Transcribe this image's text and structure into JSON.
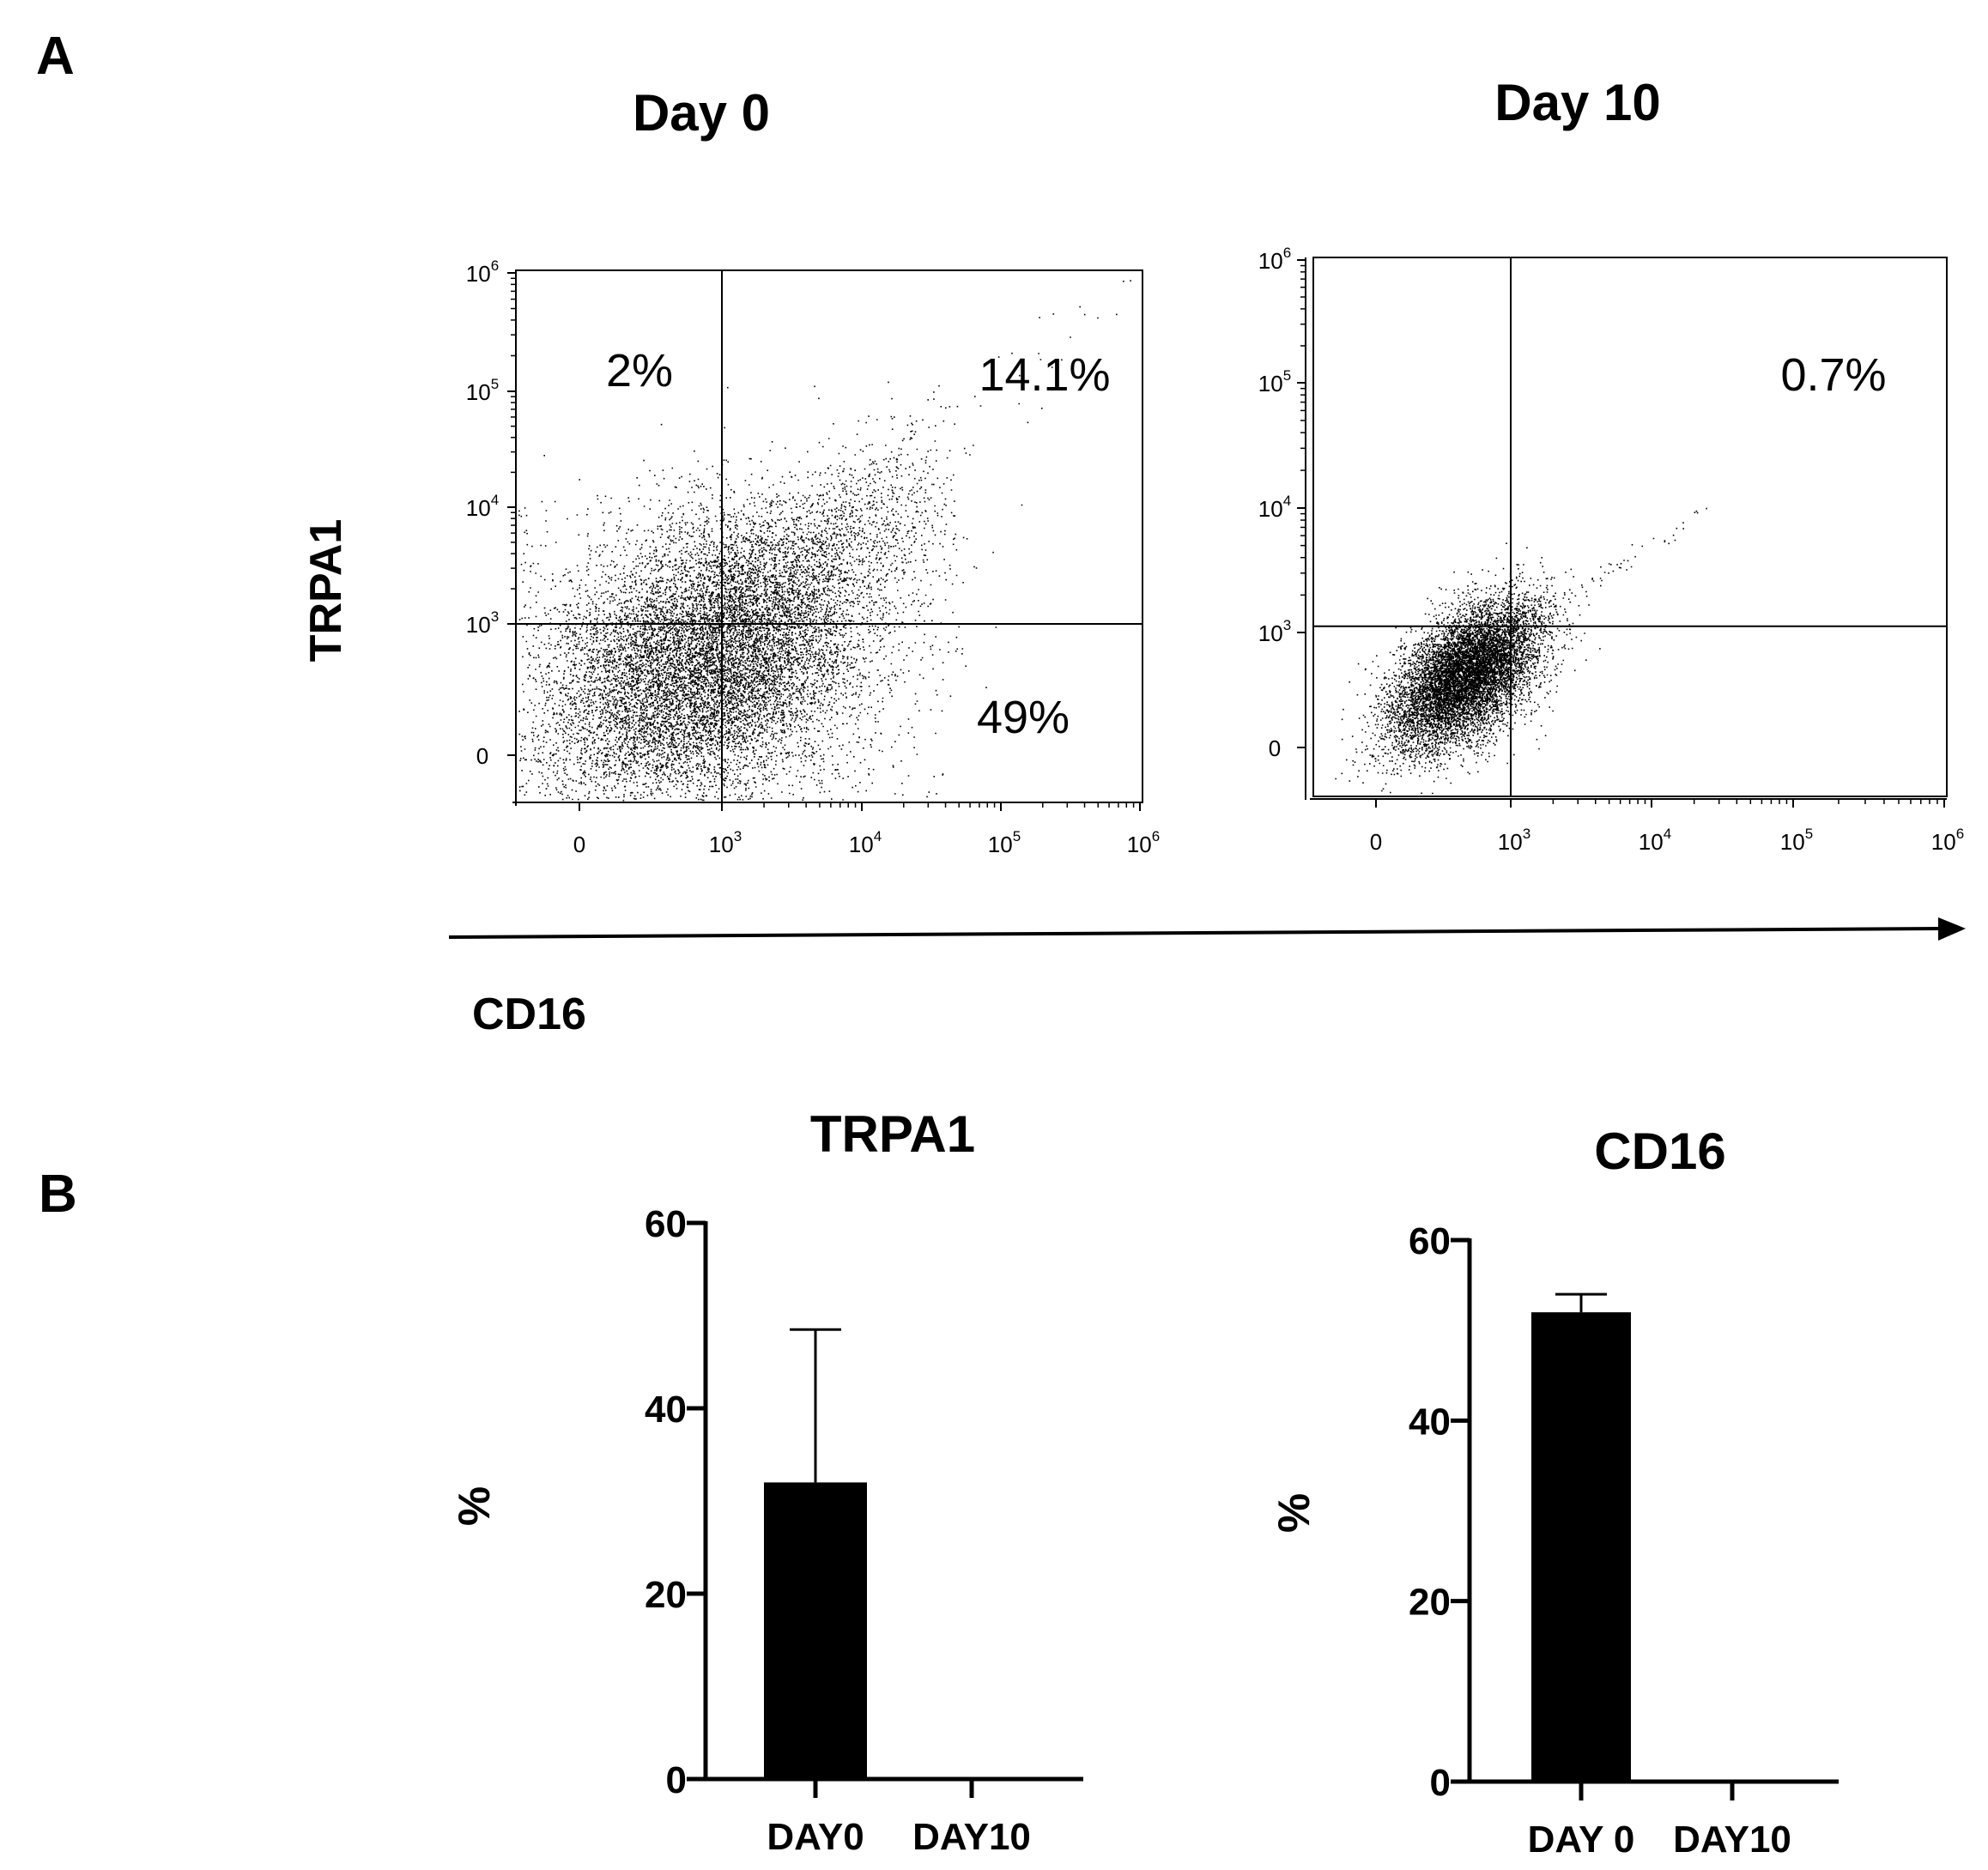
{
  "panels": {
    "a": "A",
    "b": "B"
  },
  "flow": {
    "shared_xlabel": "CD16",
    "shared_ylabel": "TRPA1",
    "tick_base": "10",
    "zero_label": "0",
    "plots": [
      {
        "title": "Day 0",
        "x_ticks": [
          {
            "value": 0,
            "label": "0"
          },
          {
            "value": 3,
            "exp": "3"
          },
          {
            "value": 4,
            "exp": "4"
          },
          {
            "value": 5,
            "exp": "5"
          },
          {
            "value": 6,
            "exp": "6"
          }
        ],
        "y_ticks": [
          {
            "value": 0,
            "label": "0"
          },
          {
            "value": 3,
            "exp": "3"
          },
          {
            "value": 4,
            "exp": "4"
          },
          {
            "value": 5,
            "exp": "5"
          },
          {
            "value": 6,
            "exp": "6"
          }
        ],
        "quadrant_gate": {
          "x": 3.0,
          "y": 3.0
        },
        "quadrant_labels": [
          {
            "quadrant": "upper-left",
            "text": "2%"
          },
          {
            "quadrant": "upper-right",
            "text": "14.1%"
          },
          {
            "quadrant": "lower-right",
            "text": "49%"
          }
        ]
      },
      {
        "title": "Day 10",
        "x_ticks": [
          {
            "value": 0,
            "label": "0"
          },
          {
            "value": 3,
            "exp": "3"
          },
          {
            "value": 4,
            "exp": "4"
          },
          {
            "value": 5,
            "exp": "5"
          },
          {
            "value": 6,
            "exp": "6"
          }
        ],
        "y_ticks": [
          {
            "value": 0,
            "label": "0"
          },
          {
            "value": 3,
            "exp": "3"
          },
          {
            "value": 4,
            "exp": "4"
          },
          {
            "value": 5,
            "exp": "5"
          },
          {
            "value": 6,
            "exp": "6"
          }
        ],
        "quadrant_gate": {
          "x": 3.0,
          "y": 3.05
        },
        "quadrant_labels": [
          {
            "quadrant": "upper-right",
            "text": "0.7%"
          }
        ]
      }
    ]
  },
  "chart_data": [
    {
      "type": "bar",
      "title": "TRPA1",
      "ylabel": "%",
      "categories": [
        "DAY0",
        "DAY10"
      ],
      "values": [
        32,
        0
      ],
      "errors": [
        16.5,
        0
      ],
      "ylim": [
        0,
        60
      ],
      "yticks": [
        0,
        20,
        40,
        60
      ]
    },
    {
      "type": "bar",
      "title": "CD16",
      "ylabel": "%",
      "categories": [
        "DAY 0",
        "DAY10"
      ],
      "values": [
        52,
        0
      ],
      "errors": [
        2,
        0
      ],
      "ylim": [
        0,
        60
      ],
      "yticks": [
        0,
        20,
        40,
        60
      ]
    }
  ],
  "colors": {
    "ink": "#000000",
    "background": "#ffffff"
  }
}
